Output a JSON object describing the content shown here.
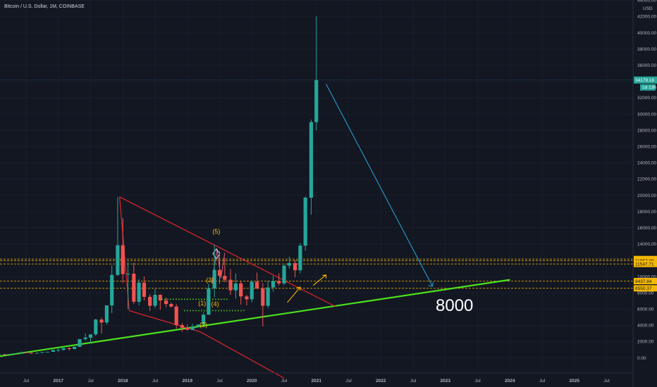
{
  "header": {
    "title": "Bitcoin / U.S. Dollar, 1M, COINBASE"
  },
  "colors": {
    "background": "#131722",
    "up": "#26a69a",
    "down": "#ef5350",
    "support_line": "#4ce21c",
    "channel": "#e0242c",
    "target_arrow": "#29a8df",
    "level_line": "#f5b800",
    "wave_labels": "#f5c000",
    "grid": "#1e2230"
  },
  "price_axis": {
    "currency": "USD",
    "ticks": [
      0,
      2000,
      4000,
      6000,
      8000,
      10000,
      12000,
      14000,
      16000,
      18000,
      20000,
      22000,
      24000,
      26000,
      28000,
      30000,
      32000,
      34000,
      36000,
      38000,
      40000,
      42000,
      44000
    ],
    "tick_labels": [
      "0.00",
      "2000.00",
      "4000.00",
      "6000.00",
      "8000.00",
      "10000.00",
      "12000.00",
      "14000.00",
      "16000.00",
      "18000.00",
      "20000.00",
      "22000.00",
      "24000.00",
      "26000.00",
      "28000.00",
      "30000.00",
      "32000.00",
      "34000.00",
      "36000.00",
      "38000.00",
      "40000.00",
      "42000.00",
      "44000.00"
    ],
    "last_price": {
      "value": 34179.18,
      "label": "34179.18",
      "countdown": "1d 13h"
    }
  },
  "time_axis": {
    "labels": [
      {
        "text": "Jul",
        "t": 2016.5
      },
      {
        "text": "2017",
        "t": 2017.0
      },
      {
        "text": "Jul",
        "t": 2017.5
      },
      {
        "text": "2018",
        "t": 2018.0
      },
      {
        "text": "Jul",
        "t": 2018.5
      },
      {
        "text": "2019",
        "t": 2019.0
      },
      {
        "text": "Jul",
        "t": 2019.5
      },
      {
        "text": "2020",
        "t": 2020.0
      },
      {
        "text": "Jul",
        "t": 2020.5
      },
      {
        "text": "2021",
        "t": 2021.0
      },
      {
        "text": "Jul",
        "t": 2021.5
      },
      {
        "text": "2022",
        "t": 2022.0
      },
      {
        "text": "Jul",
        "t": 2022.5
      },
      {
        "text": "2023",
        "t": 2023.0
      },
      {
        "text": "Jul",
        "t": 2023.5
      },
      {
        "text": "2024",
        "t": 2024.0
      },
      {
        "text": "Jul",
        "t": 2024.5
      },
      {
        "text": "2025",
        "t": 2025.0
      },
      {
        "text": "Jul",
        "t": 2025.5
      }
    ]
  },
  "horizontal_levels": [
    {
      "value": 12150.85,
      "label": "12150.85"
    },
    {
      "value": 11957.99,
      "label": "11957.99"
    },
    {
      "value": 11547.71,
      "label": "11547.71"
    },
    {
      "value": 9437.84,
      "label": "9437.84"
    },
    {
      "value": 8550.37,
      "label": "8550.37"
    }
  ],
  "annotations": {
    "target_label": "8000",
    "waves": [
      {
        "text": "(5)",
        "t": 2019.45,
        "p": 15300
      },
      {
        "text": "(3)",
        "t": 2019.35,
        "p": 9300
      },
      {
        "text": "(1)",
        "t": 2019.23,
        "p": 6450
      },
      {
        "text": "(4)",
        "t": 2019.43,
        "p": 6350
      },
      {
        "text": "(2)",
        "t": 2019.25,
        "p": 3800
      }
    ]
  },
  "drawings": {
    "support_line": {
      "from": {
        "t": 2015.6,
        "p": -400
      },
      "to": {
        "t": 2024.0,
        "p": 9600
      }
    },
    "channel_upper": {
      "from": {
        "t": 2017.95,
        "p": 19800
      },
      "to": {
        "t": 2021.3,
        "p": 6300
      }
    },
    "channel_lower": {
      "from": {
        "t": 2018.1,
        "p": 5800
      },
      "to": {
        "t": 2019.2,
        "p": 3200
      },
      "to2": {
        "t": 2020.5,
        "p": -2500
      }
    },
    "target_arrow": {
      "from": {
        "t": 2021.15,
        "p": 33700
      },
      "to": {
        "t": 2022.8,
        "p": 8800
      }
    },
    "small_arrows": [
      {
        "from": {
          "t": 2020.55,
          "p": 6800
        },
        "to": {
          "t": 2020.75,
          "p": 8700
        }
      },
      {
        "from": {
          "t": 2020.95,
          "p": 8900
        },
        "to": {
          "t": 2021.15,
          "p": 10200
        }
      }
    ],
    "dotted_green": [
      {
        "from": {
          "t": 2018.6,
          "p": 7200
        },
        "to": {
          "t": 2019.65,
          "p": 7200
        }
      },
      {
        "from": {
          "t": 2018.95,
          "p": 5800
        },
        "to": {
          "t": 2019.9,
          "p": 5800
        }
      }
    ]
  },
  "chart_data": {
    "type": "candlestick",
    "title": "Bitcoin / U.S. Dollar, 1M, COINBASE",
    "ylim": [
      -2500,
      46000
    ],
    "xlim": [
      2015.85,
      2025.9
    ],
    "candles": [
      {
        "t": 2015.92,
        "o": 380,
        "h": 460,
        "l": 350,
        "c": 430
      },
      {
        "t": 2016.0,
        "o": 430,
        "h": 460,
        "l": 360,
        "c": 370
      },
      {
        "t": 2016.08,
        "o": 370,
        "h": 440,
        "l": 360,
        "c": 435
      },
      {
        "t": 2016.17,
        "o": 435,
        "h": 440,
        "l": 400,
        "c": 415
      },
      {
        "t": 2016.25,
        "o": 415,
        "h": 460,
        "l": 410,
        "c": 450
      },
      {
        "t": 2016.33,
        "o": 450,
        "h": 540,
        "l": 440,
        "c": 530
      },
      {
        "t": 2016.42,
        "o": 530,
        "h": 780,
        "l": 520,
        "c": 670
      },
      {
        "t": 2016.5,
        "o": 670,
        "h": 700,
        "l": 600,
        "c": 625
      },
      {
        "t": 2016.58,
        "o": 625,
        "h": 640,
        "l": 480,
        "c": 575
      },
      {
        "t": 2016.67,
        "o": 575,
        "h": 620,
        "l": 570,
        "c": 610
      },
      {
        "t": 2016.75,
        "o": 610,
        "h": 710,
        "l": 600,
        "c": 700
      },
      {
        "t": 2016.83,
        "o": 700,
        "h": 750,
        "l": 680,
        "c": 740
      },
      {
        "t": 2016.92,
        "o": 740,
        "h": 980,
        "l": 730,
        "c": 960
      },
      {
        "t": 2017.0,
        "o": 960,
        "h": 1150,
        "l": 750,
        "c": 970
      },
      {
        "t": 2017.08,
        "o": 970,
        "h": 1200,
        "l": 920,
        "c": 1190
      },
      {
        "t": 2017.17,
        "o": 1190,
        "h": 1300,
        "l": 900,
        "c": 1080
      },
      {
        "t": 2017.25,
        "o": 1080,
        "h": 1400,
        "l": 1060,
        "c": 1350
      },
      {
        "t": 2017.33,
        "o": 1350,
        "h": 2300,
        "l": 1340,
        "c": 2300
      },
      {
        "t": 2017.42,
        "o": 2300,
        "h": 3000,
        "l": 2100,
        "c": 2480
      },
      {
        "t": 2017.5,
        "o": 2480,
        "h": 2900,
        "l": 1850,
        "c": 2880
      },
      {
        "t": 2017.58,
        "o": 2880,
        "h": 4800,
        "l": 2700,
        "c": 4700
      },
      {
        "t": 2017.67,
        "o": 4700,
        "h": 4950,
        "l": 2980,
        "c": 4340
      },
      {
        "t": 2017.75,
        "o": 4340,
        "h": 6470,
        "l": 4100,
        "c": 6450
      },
      {
        "t": 2017.83,
        "o": 6450,
        "h": 11400,
        "l": 5500,
        "c": 10200
      },
      {
        "t": 2017.92,
        "o": 10200,
        "h": 19800,
        "l": 10100,
        "c": 13850
      },
      {
        "t": 2018.0,
        "o": 13850,
        "h": 17200,
        "l": 9200,
        "c": 10300
      },
      {
        "t": 2018.08,
        "o": 10300,
        "h": 11800,
        "l": 6000,
        "c": 10350
      },
      {
        "t": 2018.17,
        "o": 10350,
        "h": 11700,
        "l": 6600,
        "c": 6900
      },
      {
        "t": 2018.25,
        "o": 6900,
        "h": 9700,
        "l": 6450,
        "c": 9250
      },
      {
        "t": 2018.33,
        "o": 9250,
        "h": 10000,
        "l": 7050,
        "c": 7500
      },
      {
        "t": 2018.42,
        "o": 7500,
        "h": 7800,
        "l": 5750,
        "c": 6400
      },
      {
        "t": 2018.5,
        "o": 6400,
        "h": 8500,
        "l": 6100,
        "c": 7750
      },
      {
        "t": 2018.58,
        "o": 7750,
        "h": 7800,
        "l": 5900,
        "c": 7050
      },
      {
        "t": 2018.67,
        "o": 7050,
        "h": 7400,
        "l": 6200,
        "c": 6620
      },
      {
        "t": 2018.75,
        "o": 6620,
        "h": 6800,
        "l": 6200,
        "c": 6300
      },
      {
        "t": 2018.83,
        "o": 6300,
        "h": 6600,
        "l": 3600,
        "c": 4020
      },
      {
        "t": 2018.92,
        "o": 4020,
        "h": 4300,
        "l": 3200,
        "c": 3700
      },
      {
        "t": 2019.0,
        "o": 3700,
        "h": 4100,
        "l": 3400,
        "c": 3450
      },
      {
        "t": 2019.08,
        "o": 3450,
        "h": 4200,
        "l": 3400,
        "c": 3850
      },
      {
        "t": 2019.17,
        "o": 3850,
        "h": 4100,
        "l": 3700,
        "c": 4100
      },
      {
        "t": 2019.25,
        "o": 4100,
        "h": 5600,
        "l": 4050,
        "c": 5300
      },
      {
        "t": 2019.33,
        "o": 5300,
        "h": 9100,
        "l": 5300,
        "c": 8550
      },
      {
        "t": 2019.42,
        "o": 8550,
        "h": 13900,
        "l": 7450,
        "c": 10800
      },
      {
        "t": 2019.5,
        "o": 10800,
        "h": 13100,
        "l": 9100,
        "c": 10080
      },
      {
        "t": 2019.58,
        "o": 10080,
        "h": 12300,
        "l": 9300,
        "c": 9600
      },
      {
        "t": 2019.67,
        "o": 9600,
        "h": 10900,
        "l": 7750,
        "c": 8300
      },
      {
        "t": 2019.75,
        "o": 8300,
        "h": 10400,
        "l": 7300,
        "c": 9150
      },
      {
        "t": 2019.83,
        "o": 9150,
        "h": 9500,
        "l": 6550,
        "c": 7550
      },
      {
        "t": 2019.92,
        "o": 7550,
        "h": 7750,
        "l": 6450,
        "c": 7200
      },
      {
        "t": 2020.0,
        "o": 7200,
        "h": 9550,
        "l": 6850,
        "c": 9350
      },
      {
        "t": 2020.08,
        "o": 9350,
        "h": 10500,
        "l": 8450,
        "c": 8550
      },
      {
        "t": 2020.17,
        "o": 8550,
        "h": 9200,
        "l": 3850,
        "c": 6400
      },
      {
        "t": 2020.25,
        "o": 6400,
        "h": 9500,
        "l": 6150,
        "c": 8650
      },
      {
        "t": 2020.33,
        "o": 8650,
        "h": 10100,
        "l": 8150,
        "c": 9450
      },
      {
        "t": 2020.42,
        "o": 9450,
        "h": 10400,
        "l": 8900,
        "c": 9150
      },
      {
        "t": 2020.5,
        "o": 9150,
        "h": 11450,
        "l": 8950,
        "c": 11350
      },
      {
        "t": 2020.58,
        "o": 11350,
        "h": 12450,
        "l": 11000,
        "c": 11650
      },
      {
        "t": 2020.67,
        "o": 11650,
        "h": 12050,
        "l": 9900,
        "c": 10780
      },
      {
        "t": 2020.75,
        "o": 10780,
        "h": 14100,
        "l": 10400,
        "c": 13800
      },
      {
        "t": 2020.83,
        "o": 13800,
        "h": 19850,
        "l": 13200,
        "c": 19700
      },
      {
        "t": 2020.92,
        "o": 19700,
        "h": 29300,
        "l": 17600,
        "c": 29000
      },
      {
        "t": 2021.0,
        "o": 29000,
        "h": 42000,
        "l": 28000,
        "c": 34179
      }
    ]
  }
}
